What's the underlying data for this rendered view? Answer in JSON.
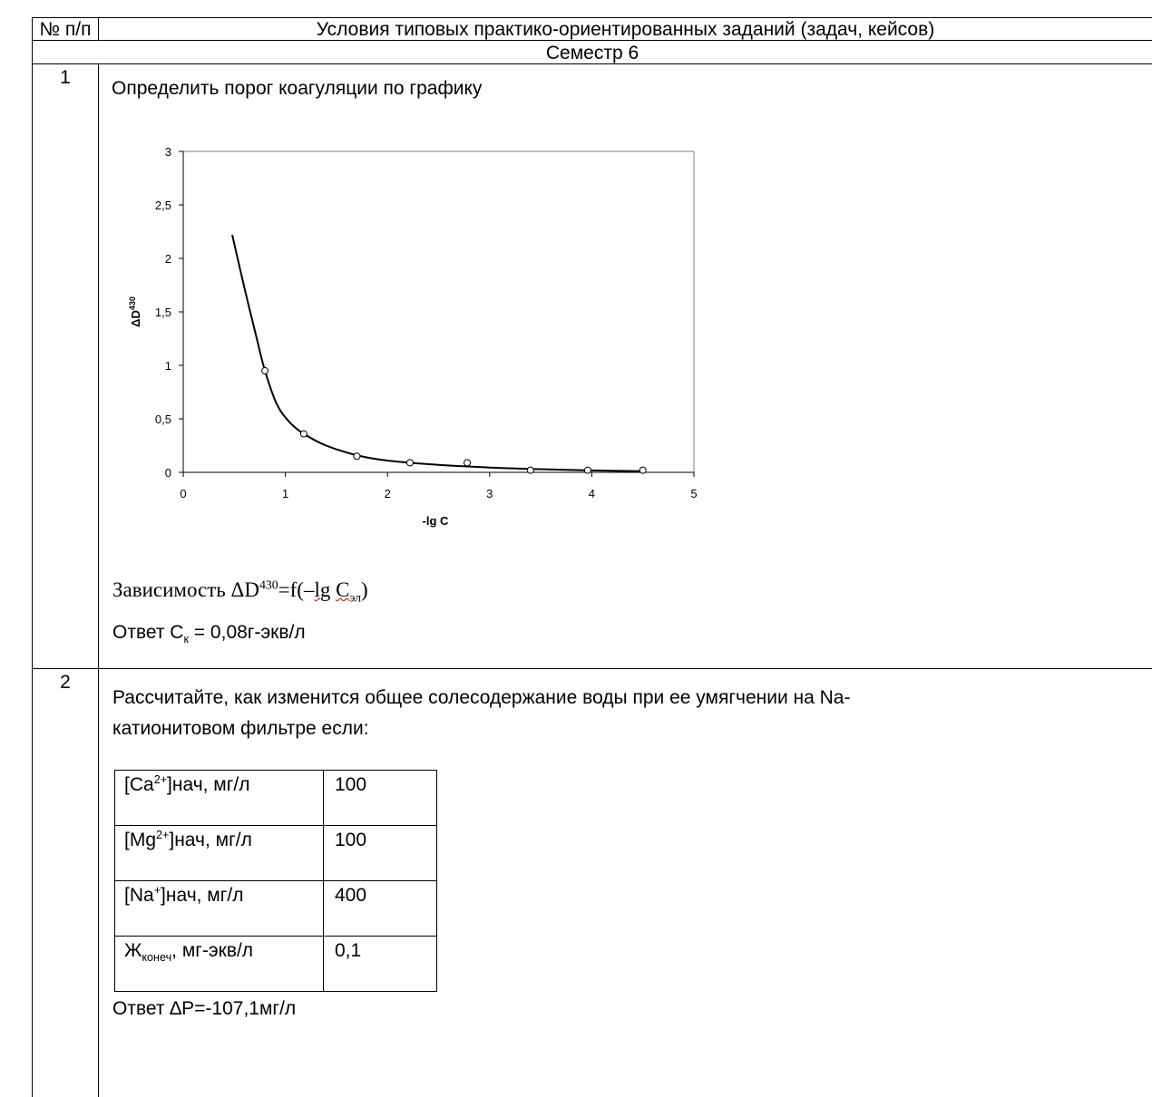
{
  "header": {
    "col1": "№ п/п",
    "col2": "Условия типовых практико-ориентированных  заданий (задач, кейсов)"
  },
  "semester": "Семестр 6",
  "task1": {
    "number": "1",
    "text": "Определить порог коагуляции по графику",
    "caption_prefix": "Зависимость ΔD",
    "caption_sup": "430",
    "caption_mid": "=f(–",
    "caption_lg": "lg",
    "caption_c": "C",
    "caption_sub": "эл",
    "caption_end": ")",
    "answer_prefix": "Ответ C",
    "answer_sub": "к",
    "answer_suffix": " = 0,08г-экв/л"
  },
  "chart_data": {
    "type": "scatter",
    "xlabel": "-lg C",
    "ylabel": "ΔD",
    "ylabel_sup": "430",
    "xlim": [
      0,
      5
    ],
    "ylim": [
      0,
      3
    ],
    "x_ticks": [
      "0",
      "1",
      "2",
      "3",
      "4",
      "5"
    ],
    "y_ticks": [
      "0",
      "0,5",
      "1",
      "1,5",
      "2",
      "2,5",
      "3"
    ],
    "points": [
      {
        "x": 0.8,
        "y": 0.95
      },
      {
        "x": 1.18,
        "y": 0.36
      },
      {
        "x": 1.7,
        "y": 0.15
      },
      {
        "x": 2.22,
        "y": 0.09
      },
      {
        "x": 2.78,
        "y": 0.09
      },
      {
        "x": 3.4,
        "y": 0.02
      },
      {
        "x": 3.96,
        "y": 0.02
      },
      {
        "x": 4.5,
        "y": 0.02
      }
    ],
    "curve": [
      {
        "x": 0.48,
        "y": 2.22
      },
      {
        "x": 0.6,
        "y": 1.72
      },
      {
        "x": 0.72,
        "y": 1.25
      },
      {
        "x": 0.8,
        "y": 0.95
      },
      {
        "x": 0.92,
        "y": 0.63
      },
      {
        "x": 1.05,
        "y": 0.46
      },
      {
        "x": 1.18,
        "y": 0.36
      },
      {
        "x": 1.4,
        "y": 0.25
      },
      {
        "x": 1.7,
        "y": 0.16
      },
      {
        "x": 2.0,
        "y": 0.11
      },
      {
        "x": 2.5,
        "y": 0.07
      },
      {
        "x": 3.0,
        "y": 0.045
      },
      {
        "x": 3.5,
        "y": 0.03
      },
      {
        "x": 4.0,
        "y": 0.018
      },
      {
        "x": 4.5,
        "y": 0.01
      }
    ],
    "grid": false
  },
  "task2": {
    "number": "2",
    "text_line1": "Рассчитайте, как изменится общее солесодержание воды при ее умягчении на Na-",
    "text_line2": "катионитовом фильтре если:",
    "rows": [
      {
        "pre": "[Ca",
        "sup": "2+",
        "sub": "",
        "post": "]нач, мг/л",
        "value": "100"
      },
      {
        "pre": "[Mg",
        "sup": "2+",
        "sub": "",
        "post": "]нач, мг/л",
        "value": "100"
      },
      {
        "pre": "[Na",
        "sup": "+",
        "sub": "",
        "post": "]нач, мг/л",
        "value": "400"
      },
      {
        "pre": "Ж",
        "sup": "",
        "sub": "конеч",
        "post": ", мг-экв/л",
        "value": "0,1"
      }
    ],
    "answer": "Ответ ∆P=-107,1мг/л"
  }
}
